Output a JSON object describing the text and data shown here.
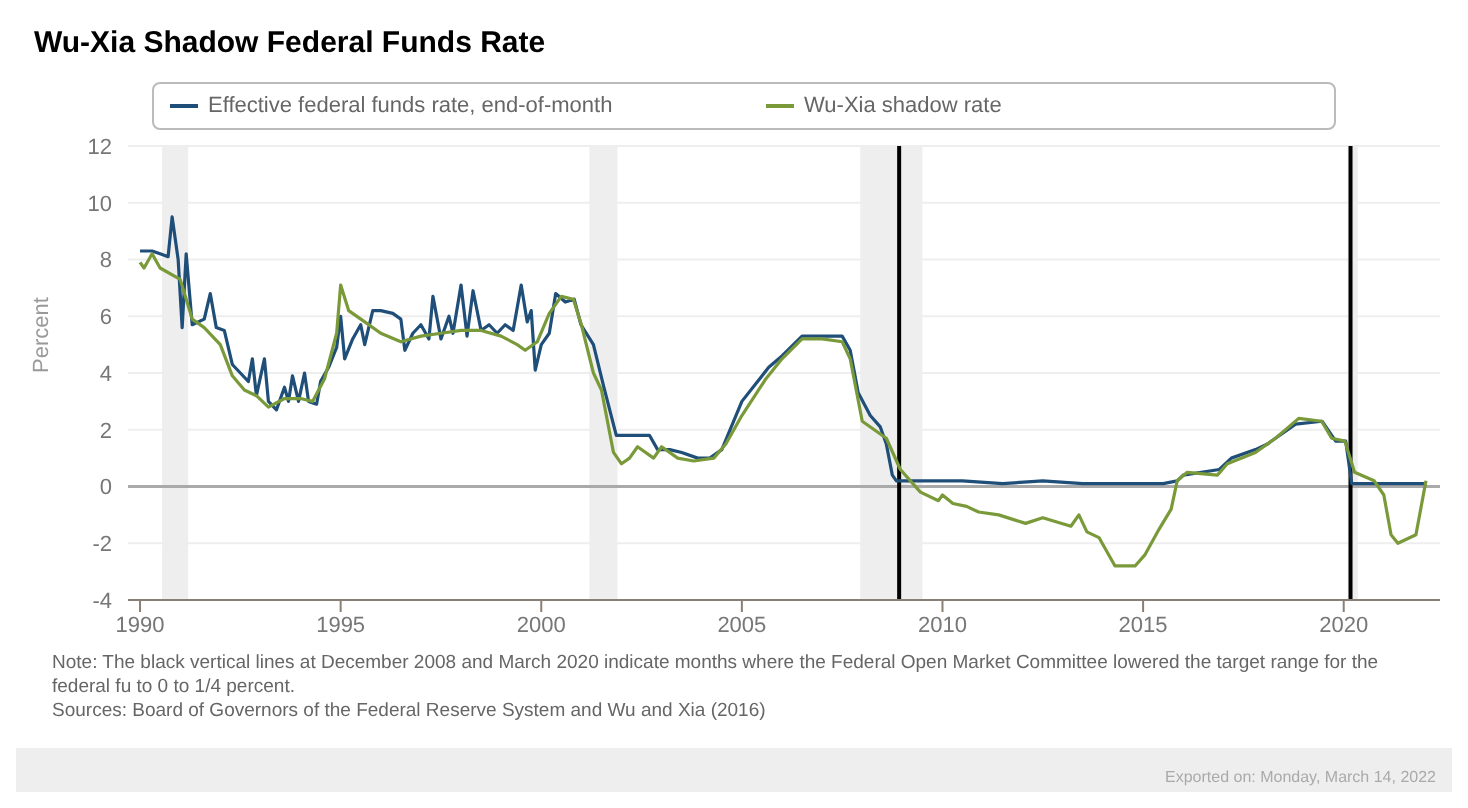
{
  "chart_data": {
    "type": "line",
    "title": "Wu-Xia Shadow Federal Funds Rate",
    "ylabel": "Percent",
    "xlim": [
      1989.7,
      2022.4
    ],
    "xticks": [
      1990,
      1995,
      2000,
      2005,
      2010,
      2015,
      2020
    ],
    "ylim": [
      -4,
      12
    ],
    "yticks": [
      -4,
      -2,
      0,
      2,
      4,
      6,
      8,
      10,
      12
    ],
    "grid": "y",
    "legend": "top",
    "marker": "none",
    "line_style": "solid",
    "series": [
      {
        "name": "Effective federal funds rate, end-of-month",
        "color": "#1f4e79",
        "x": [
          1990.0,
          1990.3,
          1990.5,
          1990.7,
          1990.8,
          1990.95,
          1991.05,
          1991.15,
          1991.3,
          1991.6,
          1991.75,
          1991.9,
          1992.1,
          1992.3,
          1992.5,
          1992.7,
          1992.8,
          1992.9,
          1993.1,
          1993.2,
          1993.4,
          1993.6,
          1993.7,
          1993.8,
          1993.95,
          1994.1,
          1994.2,
          1994.4,
          1994.5,
          1994.7,
          1994.9,
          1995.0,
          1995.1,
          1995.3,
          1995.5,
          1995.6,
          1995.8,
          1996.0,
          1996.3,
          1996.5,
          1996.6,
          1996.8,
          1997.0,
          1997.2,
          1997.3,
          1997.5,
          1997.7,
          1997.8,
          1998.0,
          1998.15,
          1998.3,
          1998.5,
          1998.7,
          1998.9,
          1999.1,
          1999.3,
          1999.5,
          1999.65,
          1999.75,
          1999.85,
          2000.0,
          2000.2,
          2000.36,
          2000.6,
          2000.82,
          2000.99,
          2001.3,
          2001.56,
          2001.87,
          2002.2,
          2002.7,
          2002.9,
          2003.2,
          2003.5,
          2003.9,
          2004.2,
          2004.5,
          2005.0,
          2005.67,
          2006.0,
          2006.5,
          2007.0,
          2007.5,
          2007.7,
          2007.9,
          2008.2,
          2008.45,
          2008.6,
          2008.75,
          2008.85,
          2009.5,
          2010.5,
          2011.5,
          2012.5,
          2013.5,
          2014.5,
          2015.5,
          2015.85,
          2016.0,
          2016.9,
          2017.2,
          2017.8,
          2018.1,
          2018.8,
          2019.46,
          2019.8,
          2020.05,
          2020.2,
          2021.0,
          2022.07
        ],
        "values": [
          8.3,
          8.3,
          8.2,
          8.1,
          9.5,
          8.0,
          5.6,
          8.2,
          5.7,
          5.9,
          6.8,
          5.6,
          5.5,
          4.3,
          4.0,
          3.7,
          4.5,
          3.2,
          4.5,
          3.0,
          2.7,
          3.5,
          3.0,
          3.9,
          3.0,
          4.0,
          3.0,
          2.9,
          3.7,
          4.2,
          4.9,
          6.0,
          4.5,
          5.2,
          5.7,
          5.0,
          6.2,
          6.2,
          6.1,
          5.9,
          4.8,
          5.4,
          5.7,
          5.2,
          6.7,
          5.2,
          6.0,
          5.4,
          7.1,
          5.3,
          6.9,
          5.5,
          5.7,
          5.4,
          5.7,
          5.5,
          7.1,
          5.8,
          6.2,
          4.1,
          5.0,
          5.4,
          6.8,
          6.5,
          6.6,
          5.7,
          5.0,
          3.5,
          1.8,
          1.8,
          1.8,
          1.3,
          1.3,
          1.2,
          1.0,
          1.0,
          1.3,
          3.0,
          4.2,
          4.6,
          5.3,
          5.3,
          5.3,
          4.8,
          3.3,
          2.5,
          2.1,
          1.5,
          0.4,
          0.2,
          0.2,
          0.2,
          0.1,
          0.2,
          0.1,
          0.1,
          0.1,
          0.2,
          0.4,
          0.6,
          1.0,
          1.3,
          1.5,
          2.2,
          2.3,
          1.6,
          1.6,
          0.1,
          0.1,
          0.1
        ]
      },
      {
        "name": "Wu-Xia shadow rate",
        "color": "#7a9a3a",
        "x": [
          1990.0,
          1990.1,
          1990.3,
          1990.5,
          1991.0,
          1991.3,
          1991.6,
          1992.0,
          1992.3,
          1992.6,
          1992.9,
          1993.2,
          1993.6,
          1994.0,
          1994.3,
          1994.6,
          1994.9,
          1995.0,
          1995.2,
          1995.6,
          1996.0,
          1996.5,
          1997.0,
          1997.5,
          1998.0,
          1998.5,
          1999.0,
          1999.4,
          1999.6,
          1999.9,
          2000.2,
          2000.5,
          2000.8,
          2001.0,
          2001.3,
          2001.5,
          2001.8,
          2002.0,
          2002.2,
          2002.4,
          2002.8,
          2003.0,
          2003.4,
          2003.8,
          2004.3,
          2004.6,
          2005.0,
          2005.6,
          2006.0,
          2006.5,
          2007.0,
          2007.5,
          2007.7,
          2008.0,
          2008.3,
          2008.6,
          2008.95,
          2009.45,
          2009.9,
          2010.0,
          2010.26,
          2010.6,
          2010.9,
          2011.4,
          2012.07,
          2012.5,
          2013.2,
          2013.4,
          2013.6,
          2013.9,
          2014.3,
          2014.8,
          2015.05,
          2015.4,
          2015.7,
          2015.85,
          2016.1,
          2016.85,
          2017.1,
          2017.8,
          2018.3,
          2018.88,
          2019.45,
          2019.7,
          2020.03,
          2020.27,
          2020.76,
          2021.0,
          2021.18,
          2021.35,
          2021.8,
          2022.05
        ],
        "values": [
          7.9,
          7.7,
          8.2,
          7.7,
          7.3,
          5.9,
          5.6,
          5.0,
          3.9,
          3.4,
          3.2,
          2.8,
          3.1,
          3.1,
          3.0,
          3.8,
          5.4,
          7.1,
          6.2,
          5.8,
          5.4,
          5.1,
          5.3,
          5.4,
          5.5,
          5.5,
          5.3,
          5.0,
          4.8,
          5.1,
          6.1,
          6.7,
          6.6,
          5.7,
          4.0,
          3.4,
          1.2,
          0.8,
          1.0,
          1.4,
          1.0,
          1.4,
          1.0,
          0.9,
          1.0,
          1.5,
          2.5,
          3.8,
          4.5,
          5.2,
          5.2,
          5.1,
          4.5,
          2.3,
          2.0,
          1.7,
          0.6,
          -0.2,
          -0.5,
          -0.3,
          -0.6,
          -0.7,
          -0.9,
          -1.0,
          -1.3,
          -1.1,
          -1.4,
          -1.0,
          -1.6,
          -1.8,
          -2.8,
          -2.8,
          -2.4,
          -1.5,
          -0.8,
          0.2,
          0.5,
          0.4,
          0.8,
          1.2,
          1.7,
          2.4,
          2.3,
          1.7,
          1.6,
          0.5,
          0.2,
          -0.3,
          -1.7,
          -2.0,
          -1.7,
          0.2
        ]
      }
    ],
    "ref_lines": [
      {
        "axis": "y",
        "value": 0,
        "color": "#aaaaaa"
      },
      {
        "axis": "x",
        "value": 2008.92,
        "color": "#000000"
      },
      {
        "axis": "x",
        "value": 2020.17,
        "color": "#000000"
      }
    ],
    "bands": [
      {
        "axis": "x",
        "from": 1990.55,
        "to": 1991.2,
        "color": "#eeeeee"
      },
      {
        "axis": "x",
        "from": 2001.2,
        "to": 2001.9,
        "color": "#eeeeee"
      },
      {
        "axis": "x",
        "from": 2007.95,
        "to": 2009.5,
        "color": "#eeeeee"
      },
      {
        "axis": "x",
        "from": 2020.1,
        "to": 2020.35,
        "color": "#eeeeee"
      }
    ],
    "annotations": [
      "Note: The black vertical lines at December 2008 and March 2020 indicate months where the Federal Open Market Committee lowered the target range for the federal fu to 0 to 1/4 percent.",
      "Sources: Board of Governors of the Federal Reserve System and Wu and Xia (2016)",
      "Exported on: Monday, March 14, 2022"
    ]
  }
}
